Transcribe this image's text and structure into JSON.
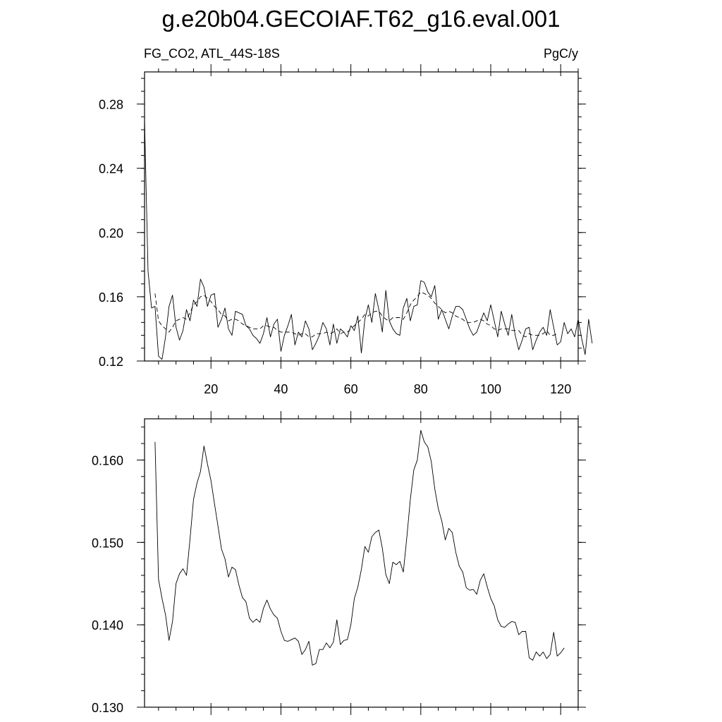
{
  "title": "g.e20b04.GECOIAF.T62_g16.eval.001",
  "variable_label": "FG_CO2, ATL_44S-18S",
  "units_label": "PgC/y",
  "chart_data": [
    {
      "type": "line",
      "ylim": [
        0.12,
        0.3
      ],
      "xlim": [
        1,
        125
      ],
      "x_ticks": [
        20,
        40,
        60,
        80,
        100,
        120
      ],
      "y_ticks": [
        0.12,
        0.16,
        0.2,
        0.24,
        0.28
      ],
      "y_tick_labels": [
        "0.12",
        "0.16",
        "0.20",
        "0.24",
        "0.28"
      ],
      "series": [
        {
          "style": "solid",
          "x_start": 1,
          "values": [
            0.27,
            0.176,
            0.153,
            0.154,
            0.123,
            0.121,
            0.135,
            0.154,
            0.161,
            0.141,
            0.133,
            0.139,
            0.152,
            0.145,
            0.158,
            0.154,
            0.171,
            0.166,
            0.154,
            0.161,
            0.162,
            0.141,
            0.146,
            0.153,
            0.14,
            0.136,
            0.151,
            0.15,
            0.149,
            0.142,
            0.14,
            0.136,
            0.134,
            0.131,
            0.137,
            0.147,
            0.135,
            0.143,
            0.146,
            0.126,
            0.136,
            0.142,
            0.149,
            0.13,
            0.138,
            0.135,
            0.145,
            0.14,
            0.127,
            0.131,
            0.136,
            0.144,
            0.14,
            0.13,
            0.143,
            0.131,
            0.14,
            0.138,
            0.135,
            0.142,
            0.139,
            0.148,
            0.125,
            0.146,
            0.155,
            0.144,
            0.162,
            0.152,
            0.138,
            0.164,
            0.145,
            0.14,
            0.137,
            0.136,
            0.153,
            0.159,
            0.145,
            0.154,
            0.155,
            0.17,
            0.169,
            0.163,
            0.16,
            0.167,
            0.146,
            0.152,
            0.146,
            0.14,
            0.148,
            0.154,
            0.154,
            0.152,
            0.146,
            0.14,
            0.136,
            0.138,
            0.144,
            0.15,
            0.145,
            0.155,
            0.145,
            0.135,
            0.151,
            0.143,
            0.136,
            0.149,
            0.136,
            0.127,
            0.133,
            0.14,
            0.141,
            0.127,
            0.133,
            0.138,
            0.141,
            0.136,
            0.152,
            0.141,
            0.13,
            0.132,
            0.144,
            0.137,
            0.14,
            0.135,
            0.146,
            0.134,
            0.124,
            0.146,
            0.131
          ]
        },
        {
          "style": "dashed",
          "x_start": 4,
          "values": [
            0.162,
            0.145,
            0.142,
            0.14,
            0.138,
            0.141,
            0.145,
            0.146,
            0.147,
            0.146,
            0.15,
            0.155,
            0.157,
            0.16,
            0.161,
            0.159,
            0.157,
            0.154,
            0.152,
            0.149,
            0.148,
            0.145,
            0.146,
            0.146,
            0.145,
            0.143,
            0.142,
            0.141,
            0.14,
            0.14,
            0.14,
            0.142,
            0.142,
            0.141,
            0.141,
            0.139,
            0.138,
            0.138,
            0.138,
            0.138,
            0.137,
            0.136,
            0.137,
            0.137,
            0.135,
            0.135,
            0.137,
            0.137,
            0.137,
            0.138,
            0.137,
            0.138,
            0.14,
            0.137,
            0.138,
            0.138,
            0.14,
            0.142,
            0.144,
            0.146,
            0.149,
            0.148,
            0.15,
            0.151,
            0.151,
            0.148,
            0.146,
            0.145,
            0.147,
            0.147,
            0.147,
            0.146,
            0.15,
            0.155,
            0.158,
            0.16,
            0.163,
            0.162,
            0.161,
            0.159,
            0.156,
            0.154,
            0.152,
            0.15,
            0.151,
            0.15,
            0.148,
            0.147,
            0.146,
            0.144,
            0.144,
            0.144,
            0.145,
            0.146,
            0.145,
            0.143,
            0.142,
            0.14,
            0.139,
            0.14,
            0.14,
            0.14,
            0.139,
            0.139,
            0.139,
            0.136,
            0.135,
            0.137,
            0.136,
            0.136,
            0.136,
            0.137,
            0.139,
            0.136,
            0.136,
            0.137
          ]
        }
      ]
    },
    {
      "type": "line",
      "ylim": [
        0.13,
        0.165
      ],
      "xlim": [
        1,
        125
      ],
      "x_ticks": [
        20,
        40,
        60,
        80,
        100,
        120
      ],
      "y_ticks": [
        0.13,
        0.14,
        0.15,
        0.16
      ],
      "y_tick_labels": [
        "0.130",
        "0.140",
        "0.150",
        "0.160"
      ],
      "series": [
        {
          "style": "solid",
          "x_start": 4,
          "values": [
            0.1622,
            0.1455,
            0.1432,
            0.1412,
            0.1381,
            0.1404,
            0.145,
            0.1462,
            0.1468,
            0.146,
            0.1504,
            0.1552,
            0.1572,
            0.1586,
            0.1617,
            0.1595,
            0.1575,
            0.1547,
            0.152,
            0.1492,
            0.148,
            0.1458,
            0.147,
            0.1467,
            0.1448,
            0.1433,
            0.1428,
            0.1408,
            0.1403,
            0.1407,
            0.1403,
            0.142,
            0.143,
            0.1419,
            0.1412,
            0.1408,
            0.1392,
            0.1381,
            0.138,
            0.1382,
            0.1384,
            0.138,
            0.1364,
            0.137,
            0.138,
            0.1351,
            0.1353,
            0.137,
            0.137,
            0.1378,
            0.1372,
            0.1379,
            0.1406,
            0.1376,
            0.1381,
            0.1382,
            0.14,
            0.1432,
            0.1446,
            0.1467,
            0.1495,
            0.1488,
            0.1507,
            0.1512,
            0.1515,
            0.1493,
            0.1461,
            0.145,
            0.1476,
            0.1473,
            0.1477,
            0.1464,
            0.1506,
            0.1552,
            0.1588,
            0.16,
            0.1636,
            0.1622,
            0.1616,
            0.1598,
            0.1565,
            0.1541,
            0.1526,
            0.1503,
            0.1517,
            0.1512,
            0.1488,
            0.1471,
            0.1464,
            0.1445,
            0.1442,
            0.1443,
            0.1437,
            0.1454,
            0.1462,
            0.1446,
            0.1432,
            0.1423,
            0.1406,
            0.1398,
            0.1397,
            0.1401,
            0.1404,
            0.1403,
            0.1388,
            0.1392,
            0.1392,
            0.136,
            0.1357,
            0.1367,
            0.1362,
            0.1367,
            0.1359,
            0.1364,
            0.1391,
            0.1362,
            0.1366,
            0.1372
          ]
        }
      ]
    }
  ]
}
